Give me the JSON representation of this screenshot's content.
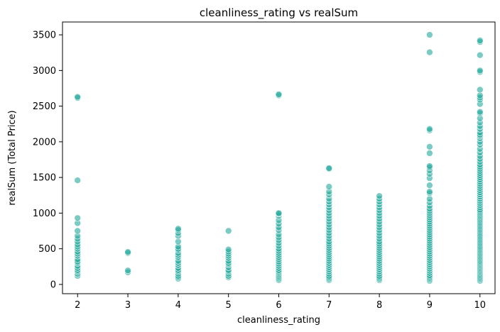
{
  "chart_data": {
    "type": "scatter",
    "title": "cleanliness_rating vs realSum",
    "xlabel": "cleanliness_rating",
    "ylabel": "realSum (Total Price)",
    "xlim": [
      1.7,
      10.3
    ],
    "ylim": [
      -130,
      3680
    ],
    "xticks": [
      2,
      3,
      4,
      5,
      6,
      7,
      8,
      9,
      10
    ],
    "yticks": [
      0,
      500,
      1000,
      1500,
      2000,
      2500,
      3000,
      3500
    ],
    "grid": false,
    "marker_color": "#20a99b",
    "marker_edge": "#ffffff",
    "marker_opacity": 0.6,
    "points_by_x": {
      "2": [
        120,
        150,
        180,
        200,
        230,
        260,
        300,
        320,
        350,
        400,
        430,
        460,
        500,
        530,
        560,
        600,
        640,
        680,
        750,
        860,
        930,
        1460,
        2615,
        2630
      ],
      "3": [
        170,
        195,
        440,
        455
      ],
      "4": [
        80,
        100,
        120,
        150,
        180,
        200,
        230,
        270,
        300,
        330,
        380,
        410,
        440,
        480,
        500,
        530,
        600,
        680,
        720,
        760,
        780
      ],
      "5": [
        100,
        120,
        150,
        180,
        200,
        240,
        280,
        300,
        330,
        370,
        400,
        430,
        460,
        490,
        750
      ],
      "6": [
        60,
        80,
        100,
        120,
        140,
        160,
        180,
        200,
        230,
        260,
        290,
        320,
        350,
        380,
        410,
        440,
        470,
        500,
        540,
        580,
        620,
        660,
        700,
        760,
        800,
        850,
        900,
        960,
        990,
        1000,
        2650,
        2665
      ],
      "7": [
        60,
        80,
        100,
        120,
        150,
        180,
        210,
        240,
        270,
        300,
        330,
        360,
        390,
        420,
        450,
        480,
        510,
        540,
        570,
        600,
        640,
        680,
        720,
        760,
        800,
        840,
        880,
        920,
        960,
        1000,
        1040,
        1080,
        1120,
        1160,
        1200,
        1260,
        1300,
        1370,
        1620,
        1630
      ],
      "8": [
        60,
        80,
        100,
        120,
        150,
        180,
        210,
        240,
        270,
        300,
        330,
        360,
        390,
        420,
        450,
        480,
        510,
        540,
        570,
        600,
        640,
        680,
        720,
        760,
        800,
        840,
        880,
        920,
        960,
        1000,
        1040,
        1080,
        1120,
        1160,
        1200,
        1240
      ],
      "9": [
        50,
        70,
        90,
        110,
        130,
        160,
        190,
        220,
        250,
        280,
        310,
        340,
        370,
        400,
        430,
        460,
        490,
        520,
        550,
        580,
        610,
        640,
        670,
        700,
        730,
        760,
        790,
        820,
        850,
        880,
        910,
        940,
        970,
        1000,
        1030,
        1060,
        1100,
        1150,
        1200,
        1280,
        1300,
        1390,
        1490,
        1550,
        1600,
        1640,
        1660,
        1840,
        1930,
        2160,
        2180,
        3255,
        3500
      ],
      "10": [
        50,
        70,
        90,
        110,
        130,
        150,
        170,
        190,
        210,
        230,
        250,
        270,
        290,
        310,
        330,
        350,
        370,
        390,
        410,
        430,
        450,
        470,
        490,
        510,
        530,
        550,
        570,
        590,
        610,
        630,
        650,
        670,
        690,
        710,
        730,
        750,
        770,
        790,
        810,
        830,
        850,
        870,
        890,
        910,
        930,
        950,
        970,
        990,
        1010,
        1030,
        1050,
        1080,
        1110,
        1140,
        1170,
        1200,
        1230,
        1260,
        1290,
        1320,
        1350,
        1380,
        1410,
        1440,
        1470,
        1500,
        1530,
        1560,
        1590,
        1620,
        1650,
        1680,
        1720,
        1760,
        1800,
        1850,
        1900,
        1960,
        2000,
        2050,
        2080,
        2100,
        2130,
        2180,
        2220,
        2270,
        2330,
        2400,
        2420,
        2530,
        2590,
        2620,
        2650,
        2730,
        2980,
        3000,
        3215,
        3400,
        3420
      ]
    }
  }
}
